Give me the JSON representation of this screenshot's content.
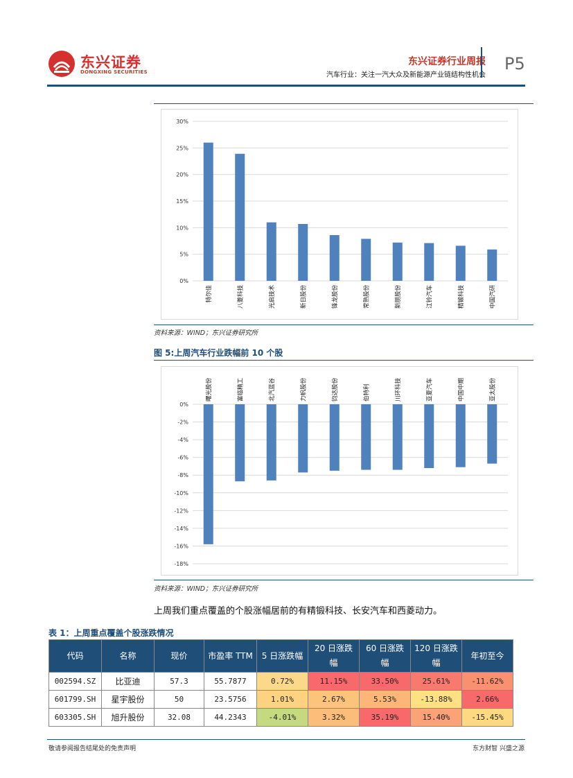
{
  "header": {
    "logo_main": "东兴证券",
    "logo_sub": "DONGXING SECURITIES",
    "report_title": "东兴证券行业周报",
    "report_subtitle": "汽车行业：关注一汽大众及新能源产业链结构性机会",
    "page": "P5"
  },
  "figure4": {
    "source": "资料来源：WIND；东兴证券研究所"
  },
  "figure5": {
    "title": "图 5:上周汽车行业跌幅前 10 个股",
    "source": "资料来源：WIND；东兴证券研究所"
  },
  "chart_data": [
    {
      "type": "bar",
      "title": "",
      "categories": [
        "特尔佳",
        "八菱科技",
        "光启技术",
        "新日股份",
        "锋龙股份",
        "常熟股份",
        "新朋股份",
        "江铃汽车",
        "精锻科技",
        "中国汽研"
      ],
      "values": [
        26.0,
        23.9,
        11.0,
        10.7,
        8.6,
        7.9,
        7.2,
        7.1,
        6.6,
        5.9
      ],
      "ylim": [
        0,
        30
      ],
      "yticks": [
        "0%",
        "5%",
        "10%",
        "15%",
        "20%",
        "25%",
        "30%"
      ],
      "unit": "%",
      "grid": true,
      "bar_color": "#4f81bd"
    },
    {
      "type": "bar",
      "title": "图 5:上周汽车行业跌幅前 10 个股",
      "categories": [
        "曙光股份",
        "富临精工",
        "北汽蓝谷",
        "力帆股份",
        "钧达股份",
        "伯特利",
        "川环科技",
        "亚夏汽车",
        "中国中期",
        "亚太股份"
      ],
      "values": [
        -15.8,
        -8.7,
        -8.6,
        -7.7,
        -7.5,
        -7.4,
        -7.4,
        -7.2,
        -7.1,
        -6.7
      ],
      "ylim": [
        -18,
        0
      ],
      "yticks": [
        "0%",
        "-2%",
        "-4%",
        "-6%",
        "-8%",
        "-10%",
        "-12%",
        "-14%",
        "-16%",
        "-18%"
      ],
      "unit": "%",
      "grid": true,
      "bar_color": "#4f81bd"
    }
  ],
  "body_text": "上周我们重点覆盖的个股涨幅居前的有精锻科技、长安汽车和西菱动力。",
  "table": {
    "title": "表 1：上周重点覆盖个股涨跌情况",
    "headers": [
      "代码",
      "名称",
      "现价",
      "市盈率 TTM",
      "5 日涨跌幅",
      "20 日涨跌幅",
      "60 日涨跌幅",
      "120 日涨跌幅",
      "年初至今"
    ],
    "rows": [
      {
        "cells": [
          "002594.SZ",
          "比亚迪",
          "57.3",
          "55.7877",
          "0.72%",
          "11.15%",
          "33.50%",
          "25.61%",
          "-11.62%"
        ],
        "colors": [
          "",
          "",
          "",
          "",
          "#fcd98a",
          "#f8696b",
          "#f8696b",
          "#f8796d",
          "#f9906f"
        ]
      },
      {
        "cells": [
          "601799.SH",
          "星宇股份",
          "50",
          "23.5756",
          "1.01%",
          "2.67%",
          "5.53%",
          "-13.88%",
          "2.66%"
        ],
        "colors": [
          "",
          "",
          "",
          "",
          "#fdd380",
          "#fcc47b",
          "#fbb678",
          "#ffe083",
          "#f8696b"
        ]
      },
      {
        "cells": [
          "603305.SH",
          "旭升股份",
          "32.08",
          "44.2343",
          "-4.01%",
          "3.32%",
          "35.19%",
          "15.40%",
          "-15.45%"
        ],
        "colors": [
          "",
          "",
          "",
          "",
          "#c4d980",
          "#fcbd7a",
          "#f8696b",
          "#fba276",
          "#fed981"
        ]
      }
    ]
  },
  "footer": {
    "left": "敬请参阅报告结尾处的免责声明",
    "right": "东方财智 兴盛之源"
  }
}
